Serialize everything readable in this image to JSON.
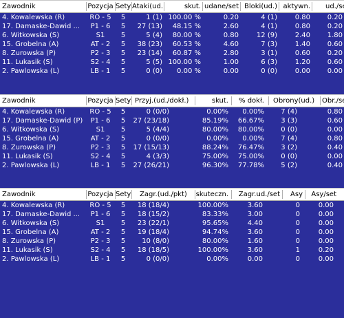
{
  "tables": [
    {
      "headers": [
        "Zawodnik",
        "Pozycja",
        "Sety",
        "Ataki(ud.)",
        "skut.",
        "udane/set",
        "Bloki(ud.)",
        "aktywn.",
        "ud./se"
      ],
      "rows": [
        [
          "4. Kowalewska (R)",
          "RO - 5",
          "5",
          "1 (1)",
          "100.00 %",
          "0.20",
          "4 (1)",
          "0.80",
          "0.20"
        ],
        [
          "17. Damaske-Dawid ...",
          "P1 - 6",
          "5",
          "27 (13)",
          "48.15 %",
          "2.60",
          "4 (1)",
          "0.80",
          "0.20"
        ],
        [
          "6. Witkowska (S)",
          "S1",
          "5",
          "5 (4)",
          "80.00 %",
          "0.80",
          "12 (9)",
          "2.40",
          "1.80"
        ],
        [
          "15. Grobelna (A)",
          "AT - 2",
          "5",
          "38 (23)",
          "60.53 %",
          "4.60",
          "7 (3)",
          "1.40",
          "0.60"
        ],
        [
          "8. Zurowska (P)",
          "P2 - 3",
          "5",
          "23 (14)",
          "60.87 %",
          "2.80",
          "3 (1)",
          "0.60",
          "0.20"
        ],
        [
          "11. Lukasik (S)",
          "S2 - 4",
          "5",
          "5 (5)",
          "100.00 %",
          "1.00",
          "6 (3)",
          "1.20",
          "0.60"
        ],
        [
          "2. Pawlowska (L)",
          "LB - 1",
          "5",
          "0 (0)",
          "0.00 %",
          "0.00",
          "0 (0)",
          "0.00",
          "0.00"
        ]
      ]
    },
    {
      "headers": [
        "Zawodnik",
        "Pozycja",
        "Sety",
        "Przyj.(ud./dokł.)",
        "skut.",
        "% dokł.",
        "Obrony(ud.)",
        "Obr./se"
      ],
      "rows": [
        [
          "4. Kowalewska (R)",
          "RO - 5",
          "5",
          "0 (0/0)",
          "0.00%",
          "0.00%",
          "7 (4)",
          "0.80"
        ],
        [
          "17. Damaske-Dawid (P)",
          "P1 - 6",
          "5",
          "27 (23/18)",
          "85.19%",
          "66.67%",
          "3 (3)",
          "0.60"
        ],
        [
          "6. Witkowska (S)",
          "S1",
          "5",
          "5 (4/4)",
          "80.00%",
          "80.00%",
          "0 (0)",
          "0.00"
        ],
        [
          "15. Grobelna (A)",
          "AT - 2",
          "5",
          "0 (0/0)",
          "0.00%",
          "0.00%",
          "7 (4)",
          "0.80"
        ],
        [
          "8. Zurowska (P)",
          "P2 - 3",
          "5",
          "17 (15/13)",
          "88.24%",
          "76.47%",
          "3 (2)",
          "0.40"
        ],
        [
          "11. Lukasik (S)",
          "S2 - 4",
          "5",
          "4 (3/3)",
          "75.00%",
          "75.00%",
          "0 (0)",
          "0.00"
        ],
        [
          "2. Pawlowska (L)",
          "LB - 1",
          "5",
          "27 (26/21)",
          "96.30%",
          "77.78%",
          "5 (2)",
          "0.40"
        ]
      ]
    },
    {
      "headers": [
        "Zawodnik",
        "Pozycja",
        "Sety",
        "Zagr.(ud./pkt)",
        "skuteczn.",
        "Zagr.ud./set",
        "Asy",
        "Asy/set"
      ],
      "rows": [
        [
          "4. Kowalewska (R)",
          "RO - 5",
          "5",
          "18 (18/4)",
          "100.00%",
          "3.60",
          "0",
          "0.00"
        ],
        [
          "17. Damaske-Dawid ...",
          "P1 - 6",
          "5",
          "18 (15/2)",
          "83.33%",
          "3.00",
          "0",
          "0.00"
        ],
        [
          "6. Witkowska (S)",
          "S1",
          "5",
          "23 (22/1)",
          "95.65%",
          "4.40",
          "0",
          "0.00"
        ],
        [
          "15. Grobelna (A)",
          "AT - 2",
          "5",
          "19 (18/4)",
          "94.74%",
          "3.60",
          "0",
          "0.00"
        ],
        [
          "8. Zurowska (P)",
          "P2 - 3",
          "5",
          "10 (8/0)",
          "80.00%",
          "1.60",
          "0",
          "0.00"
        ],
        [
          "11. Lukasik (S)",
          "S2 - 4",
          "5",
          "18 (18/5)",
          "100.00%",
          "3.60",
          "1",
          "0.20"
        ],
        [
          "2. Pawlowska (L)",
          "LB - 1",
          "5",
          "0 (0/0)",
          "0.00%",
          "0.00",
          "0",
          "0.00"
        ]
      ]
    }
  ]
}
